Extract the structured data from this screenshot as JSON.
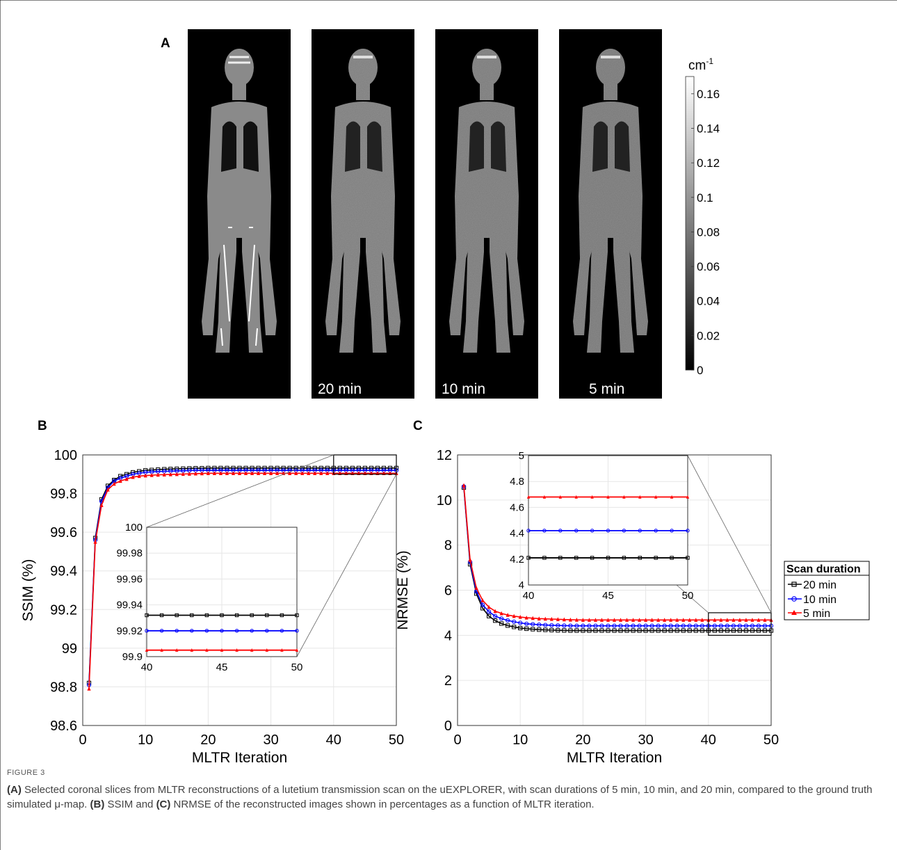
{
  "panels": {
    "a": {
      "letter": "A",
      "image_labels": [
        "",
        "20 min",
        "10 min",
        "5 min"
      ],
      "colorbar": {
        "unit_base": "cm",
        "unit_exp": "-1",
        "ticks": [
          "0.16",
          "0.14",
          "0.12",
          "0.1",
          "0.08",
          "0.06",
          "0.04",
          "0.02",
          "0"
        ]
      }
    },
    "b": {
      "letter": "B"
    },
    "c": {
      "letter": "C"
    }
  },
  "legend": {
    "title": "Scan duration",
    "entries": [
      "20 min",
      "10 min",
      "5 min"
    ]
  },
  "series_colors": {
    "20 min": "#000000",
    "10 min": "#0000ff",
    "5 min": "#ff0000"
  },
  "chart_data": [
    {
      "id": "ssim",
      "type": "line",
      "title": "",
      "xlabel": "MLTR Iteration",
      "ylabel": "SSIM (%)",
      "xlim": [
        0,
        50
      ],
      "ylim": [
        98.6,
        100
      ],
      "xticks": [
        0,
        10,
        20,
        30,
        40,
        50
      ],
      "yticks": [
        98.6,
        98.8,
        99,
        99.2,
        99.4,
        99.6,
        99.8,
        100
      ],
      "grid": true,
      "series": [
        {
          "name": "20 min",
          "marker": "square",
          "values": [
            98.82,
            99.57,
            99.77,
            99.84,
            99.87,
            99.89,
            99.9,
            99.91,
            99.915,
            99.92,
            99.922,
            99.924,
            99.926,
            99.927,
            99.928,
            99.929,
            99.93,
            99.931,
            99.931,
            99.932
          ]
        },
        {
          "name": "10 min",
          "marker": "circle",
          "values": [
            98.81,
            99.56,
            99.76,
            99.83,
            99.865,
            99.88,
            99.89,
            99.9,
            99.905,
            99.91,
            99.912,
            99.914,
            99.915,
            99.916,
            99.917,
            99.918,
            99.919,
            99.92,
            99.92,
            99.92
          ]
        },
        {
          "name": "5 min",
          "marker": "triangle",
          "values": [
            98.79,
            99.55,
            99.74,
            99.82,
            99.85,
            99.865,
            99.875,
            99.885,
            99.89,
            99.893,
            99.895,
            99.897,
            99.898,
            99.899,
            99.9,
            99.901,
            99.902,
            99.903,
            99.904,
            99.905
          ]
        }
      ],
      "inset": {
        "xlim": [
          40,
          50
        ],
        "ylim": [
          99.9,
          100
        ],
        "xticks": [
          40,
          45,
          50
        ],
        "yticks": [
          99.9,
          99.92,
          99.94,
          99.96,
          99.98,
          100
        ],
        "values": {
          "20 min": 99.932,
          "10 min": 99.92,
          "5 min": 99.905
        }
      }
    },
    {
      "id": "nrmse",
      "type": "line",
      "title": "",
      "xlabel": "MLTR Iteration",
      "ylabel": "NRMSE (%)",
      "xlim": [
        0,
        50
      ],
      "ylim": [
        0,
        12
      ],
      "xticks": [
        0,
        10,
        20,
        30,
        40,
        50
      ],
      "yticks": [
        0,
        2,
        4,
        6,
        8,
        10,
        12
      ],
      "grid": true,
      "series": [
        {
          "name": "20 min",
          "marker": "square",
          "values": [
            10.55,
            7.15,
            5.85,
            5.2,
            4.85,
            4.65,
            4.52,
            4.43,
            4.37,
            4.32,
            4.29,
            4.27,
            4.25,
            4.24,
            4.23,
            4.22,
            4.215,
            4.21,
            4.21,
            4.21
          ]
        },
        {
          "name": "10 min",
          "marker": "circle",
          "values": [
            10.6,
            7.25,
            5.95,
            5.35,
            5.05,
            4.85,
            4.74,
            4.66,
            4.6,
            4.55,
            4.51,
            4.49,
            4.47,
            4.455,
            4.445,
            4.435,
            4.43,
            4.425,
            4.42,
            4.42
          ]
        },
        {
          "name": "5 min",
          "marker": "triangle",
          "values": [
            10.65,
            7.35,
            6.1,
            5.55,
            5.25,
            5.07,
            4.97,
            4.9,
            4.85,
            4.81,
            4.78,
            4.76,
            4.74,
            4.73,
            4.72,
            4.71,
            4.7,
            4.69,
            4.685,
            4.68
          ]
        }
      ],
      "inset": {
        "xlim": [
          40,
          50
        ],
        "ylim": [
          4,
          5
        ],
        "xticks": [
          40,
          45,
          50
        ],
        "yticks": [
          4,
          4.2,
          4.4,
          4.6,
          4.8,
          5
        ],
        "values": {
          "20 min": 4.21,
          "10 min": 4.42,
          "5 min": 4.68
        }
      }
    }
  ],
  "caption": {
    "label": "FIGURE 3",
    "part_a_label": "(A)",
    "part_a_text": " Selected coronal slices from MLTR reconstructions of a lutetium transmission scan on the uEXPLORER, with scan durations of 5 min, 10 min, and 20 min, compared to the ground truth simulated μ-map. ",
    "part_b_label": "(B)",
    "part_b_text": " SSIM and ",
    "part_c_label": "(C)",
    "part_c_text": " NRMSE of the reconstructed images shown in percentages as a function of MLTR iteration."
  }
}
